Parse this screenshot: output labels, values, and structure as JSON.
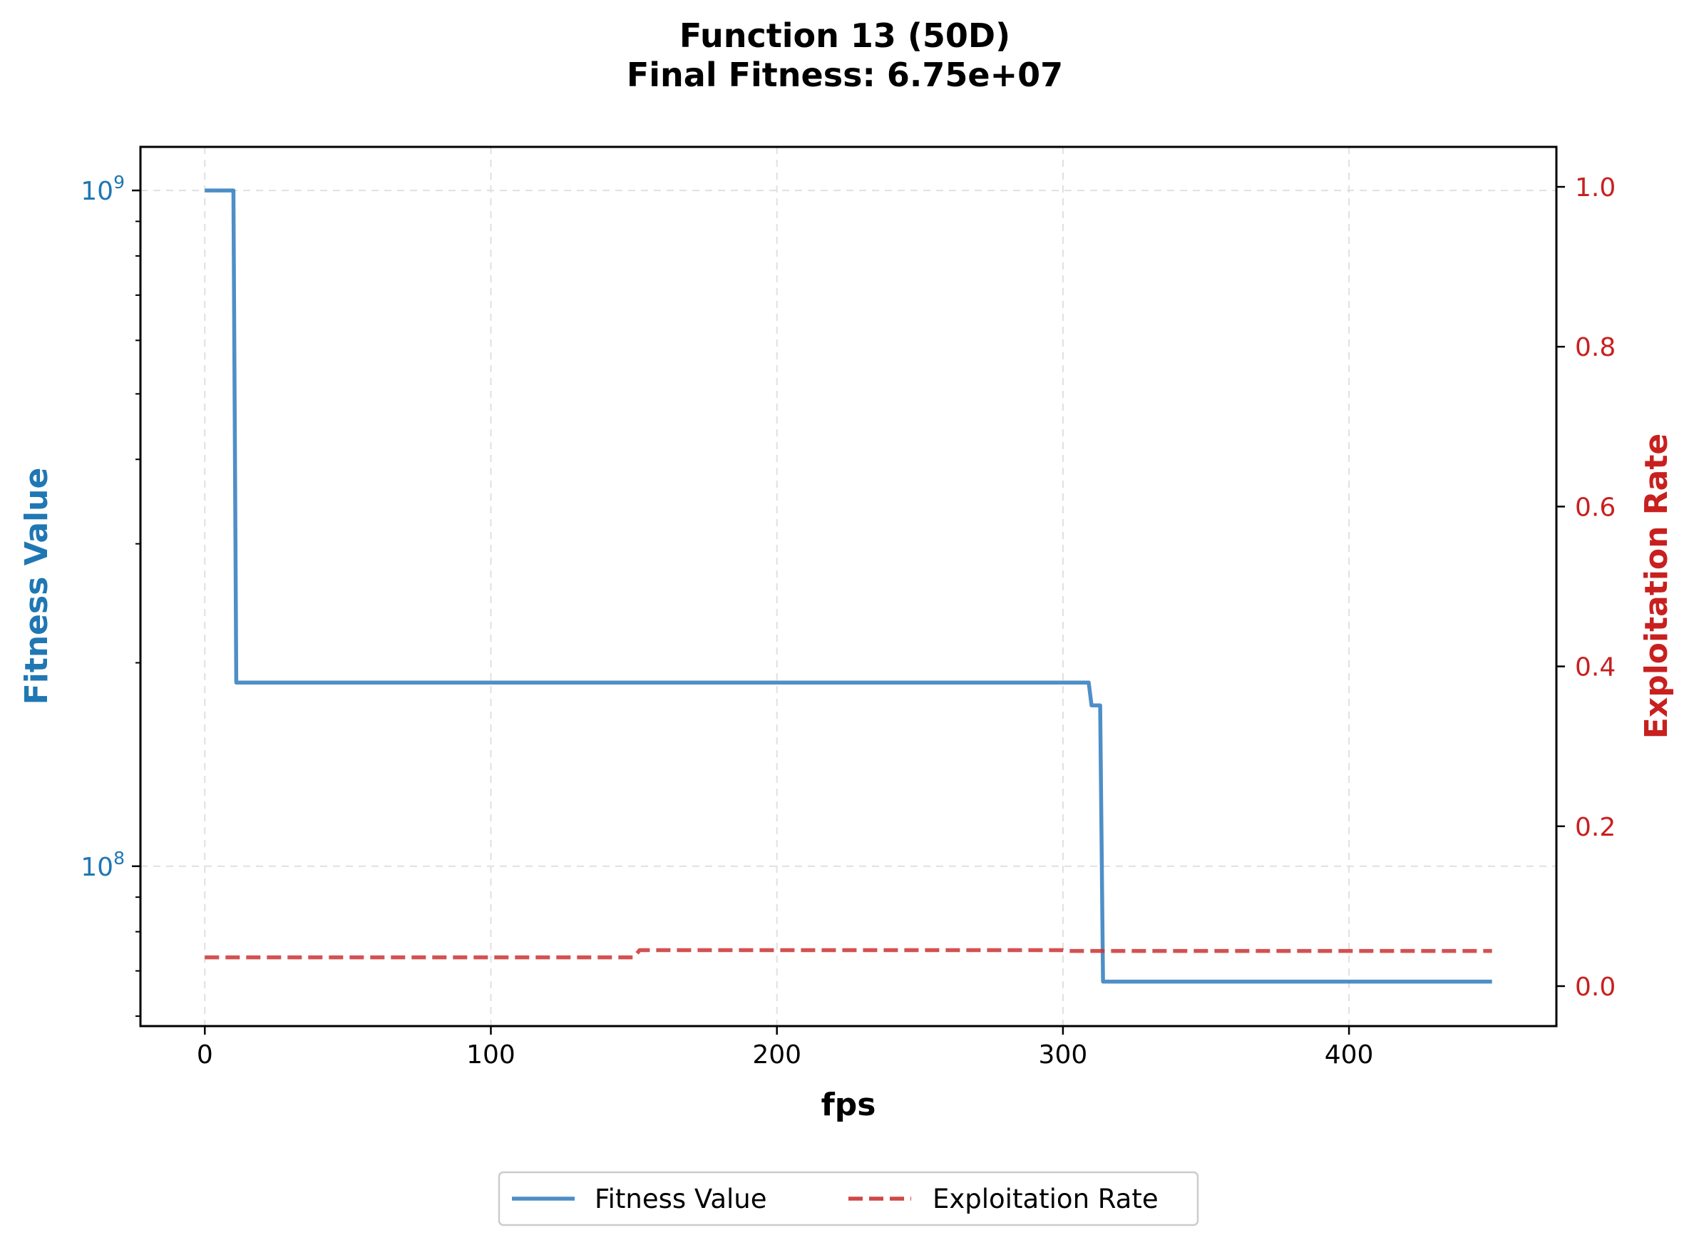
{
  "chart_data": {
    "type": "line",
    "title": "Function 13 (50D)",
    "subtitle": "Final Fitness: 6.75e+07",
    "xlabel": "fps",
    "ylabel_left": "Fitness Value",
    "ylabel_right": "Exploitation Rate",
    "y_left_scale": "log",
    "xlim": [
      -22.5,
      472.5
    ],
    "ylim_left": [
      58000000,
      1160000000
    ],
    "ylim_right": [
      -0.05,
      1.05
    ],
    "x_ticks": [
      0,
      100,
      200,
      300,
      400
    ],
    "x_tick_labels": [
      "0",
      "100",
      "200",
      "300",
      "400"
    ],
    "y_left_ticks": [
      {
        "value": 1000000000,
        "base": "10",
        "exp": "9"
      },
      {
        "value": 100000000,
        "base": "10",
        "exp": "8"
      }
    ],
    "y_right_ticks": [
      0.0,
      0.2,
      0.4,
      0.6,
      0.8,
      1.0
    ],
    "y_right_tick_labels": [
      "0.0",
      "0.2",
      "0.4",
      "0.6",
      "0.8",
      "1.0"
    ],
    "grid": true,
    "legend_position": "bottom-center",
    "series": [
      {
        "name": "Fitness Value",
        "axis": "left",
        "color": "#2f7bbd",
        "style": "solid",
        "points": [
          [
            0,
            1000000000
          ],
          [
            10,
            1000000000
          ],
          [
            11,
            187000000
          ],
          [
            309,
            187000000
          ],
          [
            310,
            173000000
          ],
          [
            313,
            173000000
          ],
          [
            314,
            67500000
          ],
          [
            450,
            67500000
          ]
        ]
      },
      {
        "name": "Exploitation Rate",
        "axis": "right",
        "color": "#cc3333",
        "style": "dashed",
        "points": [
          [
            0,
            0.036
          ],
          [
            150,
            0.036
          ],
          [
            152,
            0.045
          ],
          [
            300,
            0.045
          ],
          [
            302,
            0.044
          ],
          [
            450,
            0.044
          ]
        ]
      }
    ]
  },
  "colors": {
    "left_axis": "#1f77b4",
    "right_axis": "#c8201f",
    "grid": "#e0e0e0"
  }
}
